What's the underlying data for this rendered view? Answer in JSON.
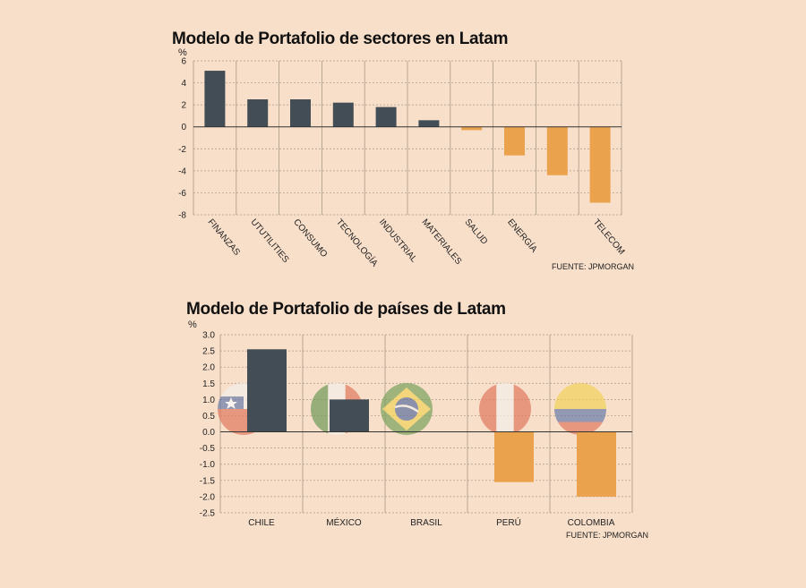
{
  "chart_data": [
    {
      "type": "bar",
      "title": "Modelo de Portafolio de sectores en Latam",
      "ylabel": "%",
      "source": "FUENTE: JPMORGAN",
      "categories": [
        "FINANZAS",
        "UTUTILITIES",
        "CONSUMO",
        "TECNOLOGÍA",
        "INDUSTRIAL",
        "MATERIALES",
        "SALUD",
        "ENERGÍA",
        "",
        "TELECOM"
      ],
      "values": [
        5.1,
        2.5,
        2.5,
        2.2,
        1.8,
        0.6,
        -0.3,
        -2.6,
        -4.4,
        -6.9
      ],
      "yticks": [
        "6",
        "4",
        "2",
        "0",
        "-2",
        "-4",
        "-6",
        "-8"
      ],
      "ylim": [
        -8,
        6
      ],
      "colors": {
        "positive": "#434d55",
        "negative": "#eba24d"
      },
      "grid": true
    },
    {
      "type": "bar",
      "title": "Modelo de Portafolio de países de Latam",
      "ylabel": "%",
      "source": "FUENTE: JPMORGAN",
      "categories": [
        "CHILE",
        "MÉXICO",
        "BRASIL",
        "PERÚ",
        "COLOMBIA"
      ],
      "values": [
        2.55,
        1.0,
        0.0,
        -1.55,
        -2.0
      ],
      "yticks": [
        "3.0",
        "2.5",
        "2.0",
        "1.5",
        "1.0",
        "0.5",
        "0.0",
        "-0.5",
        "-1.0",
        "-1.5",
        "-2.0",
        "-2.5"
      ],
      "ylim": [
        -2.5,
        3.0
      ],
      "flags": [
        "chile-flag-icon",
        "mexico-flag-icon",
        "brazil-flag-icon",
        "peru-flag-icon",
        "colombia-flag-icon"
      ],
      "colors": {
        "positive": "#434d55",
        "negative": "#eba24d"
      },
      "grid": true
    }
  ]
}
